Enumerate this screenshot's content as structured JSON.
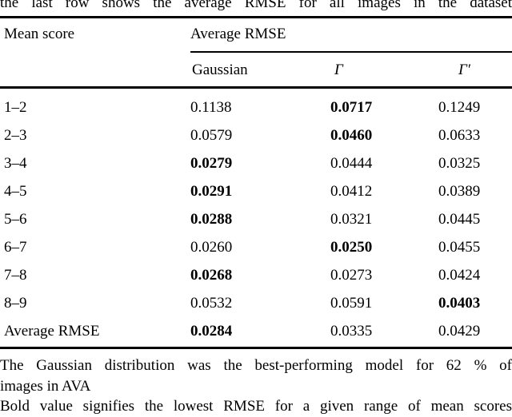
{
  "caption_top": "the last row shows the average RMSE for all images in the dataset",
  "table": {
    "col1_header": "Mean score",
    "group_header": "Average RMSE",
    "sub_headers": [
      "Gaussian",
      "Γ",
      "Γ′"
    ],
    "rows": [
      {
        "label": "1–2",
        "values": [
          "0.1138",
          "0.0717",
          "0.1249"
        ],
        "bold": 1
      },
      {
        "label": "2–3",
        "values": [
          "0.0579",
          "0.0460",
          "0.0633"
        ],
        "bold": 1
      },
      {
        "label": "3–4",
        "values": [
          "0.0279",
          "0.0444",
          "0.0325"
        ],
        "bold": 0
      },
      {
        "label": "4–5",
        "values": [
          "0.0291",
          "0.0412",
          "0.0389"
        ],
        "bold": 0
      },
      {
        "label": "5–6",
        "values": [
          "0.0288",
          "0.0321",
          "0.0445"
        ],
        "bold": 0
      },
      {
        "label": "6–7",
        "values": [
          "0.0260",
          "0.0250",
          "0.0455"
        ],
        "bold": 1
      },
      {
        "label": "7–8",
        "values": [
          "0.0268",
          "0.0273",
          "0.0424"
        ],
        "bold": 0
      },
      {
        "label": "8–9",
        "values": [
          "0.0532",
          "0.0591",
          "0.0403"
        ],
        "bold": 2
      },
      {
        "label": "Average RMSE",
        "values": [
          "0.0284",
          "0.0335",
          "0.0429"
        ],
        "bold": 0
      }
    ]
  },
  "notes": {
    "note1_line1": "The Gaussian distribution was the best-performing model for 62 % of",
    "note1_line2": "images in AVA",
    "note2": "Bold value signifies the lowest RMSE for a given range of mean scores"
  },
  "colors": {
    "text": "#000000",
    "background": "#ffffff",
    "rule": "#000000"
  }
}
